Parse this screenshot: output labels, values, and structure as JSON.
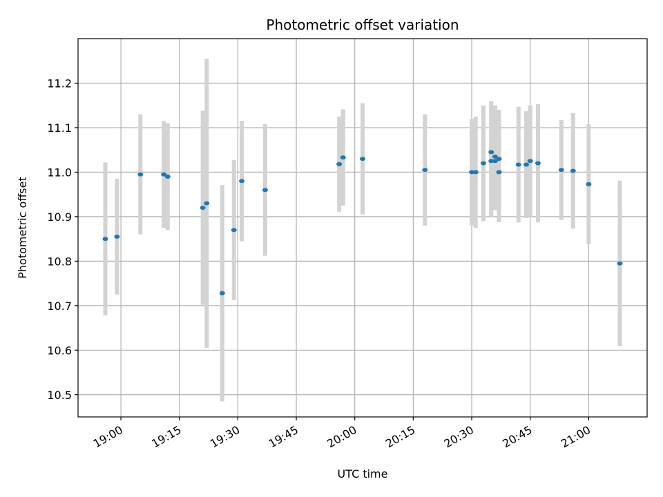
{
  "chart_data": {
    "type": "scatter",
    "title": "Photometric offset variation",
    "xlabel": "UTC time",
    "ylabel": "Photometric offset",
    "x_ticks": [
      "19:00",
      "19:15",
      "19:30",
      "19:45",
      "20:00",
      "20:15",
      "20:30",
      "20:45",
      "21:00"
    ],
    "y_ticks": [
      "10.5",
      "10.6",
      "10.7",
      "10.8",
      "10.9",
      "11.0",
      "11.1",
      "11.2"
    ],
    "xlim": [
      "18:49",
      "21:15"
    ],
    "ylim": [
      10.45,
      11.3
    ],
    "grid": true,
    "colors": {
      "point": "#1f77b4",
      "errorbar": "#d3d3d3",
      "grid": "#b0b0b0",
      "axis": "#000000"
    },
    "series": [
      {
        "x": [
          "18:56",
          "18:59",
          "19:05",
          "19:11",
          "19:12",
          "19:21",
          "19:22",
          "19:26",
          "19:29",
          "19:31",
          "19:37",
          "19:56",
          "19:57",
          "20:02",
          "20:18",
          "20:30",
          "20:31",
          "20:33",
          "20:35",
          "20:35",
          "20:36",
          "20:36",
          "20:37",
          "20:37",
          "20:42",
          "20:44",
          "20:45",
          "20:47",
          "20:53",
          "20:56",
          "21:00",
          "21:08"
        ],
        "y": [
          10.85,
          10.855,
          10.995,
          10.995,
          10.99,
          10.92,
          10.93,
          10.728,
          10.87,
          10.98,
          10.96,
          11.018,
          11.033,
          11.03,
          11.005,
          11.0,
          11.0,
          11.02,
          11.025,
          11.045,
          11.035,
          11.025,
          11.03,
          11.0,
          11.017,
          11.017,
          11.025,
          11.02,
          11.005,
          11.003,
          10.973,
          10.795
        ],
        "yerr": [
          0.172,
          0.13,
          0.135,
          0.12,
          0.12,
          0.218,
          0.325,
          0.243,
          0.157,
          0.135,
          0.148,
          0.107,
          0.108,
          0.125,
          0.125,
          0.12,
          0.125,
          0.13,
          0.125,
          0.115,
          0.115,
          0.11,
          0.11,
          0.112,
          0.13,
          0.12,
          0.125,
          0.133,
          0.112,
          0.13,
          0.135,
          0.186
        ]
      }
    ]
  }
}
